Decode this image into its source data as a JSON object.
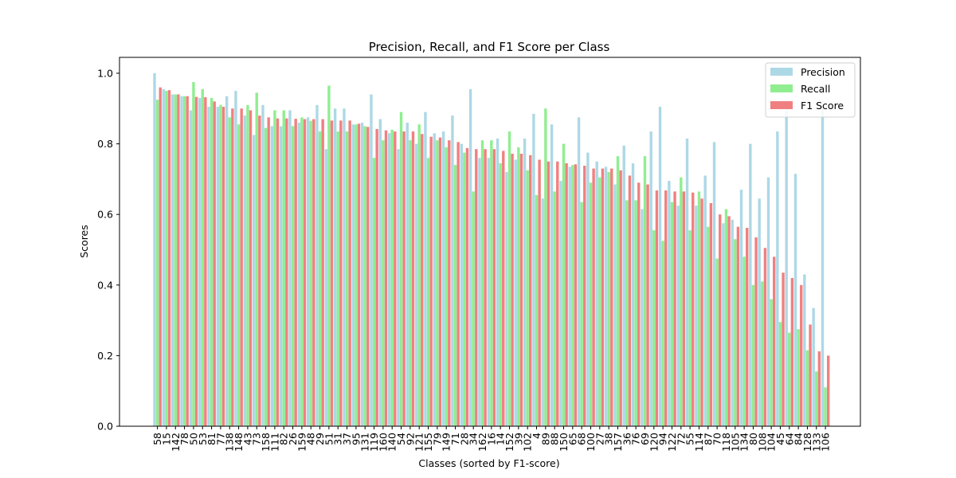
{
  "chart_data": {
    "type": "bar",
    "title": "Precision, Recall, and F1 Score per Class",
    "xlabel": "Classes (sorted by F1-score)",
    "ylabel": "Scores",
    "ylim": [
      0,
      1.045
    ],
    "yticks": [
      "0.0",
      "0.2",
      "0.4",
      "0.6",
      "0.8",
      "1.0"
    ],
    "ytick_values": [
      0,
      0.2,
      0.4,
      0.6,
      0.8,
      1.0
    ],
    "legend_position": "top-right",
    "categories": [
      "58",
      "15",
      "142",
      "78",
      "50",
      "53",
      "81",
      "77",
      "138",
      "148",
      "43",
      "73",
      "158",
      "111",
      "82",
      "26",
      "159",
      "48",
      "29",
      "51",
      "31",
      "37",
      "95",
      "131",
      "119",
      "160",
      "140",
      "54",
      "92",
      "121",
      "155",
      "79",
      "149",
      "71",
      "28",
      "34",
      "162",
      "16",
      "14",
      "152",
      "39",
      "102",
      "4",
      "89",
      "88",
      "150",
      "65",
      "68",
      "100",
      "27",
      "38",
      "157",
      "36",
      "76",
      "69",
      "120",
      "94",
      "122",
      "72",
      "55",
      "114",
      "87",
      "70",
      "118",
      "105",
      "134",
      "80",
      "108",
      "104",
      "45",
      "64",
      "84",
      "128",
      "133",
      "106"
    ],
    "series": [
      {
        "name": "Precision",
        "color": "#add8e6",
        "values": [
          1.0,
          0.955,
          0.94,
          0.935,
          0.895,
          0.93,
          0.905,
          0.905,
          0.935,
          0.95,
          0.88,
          0.825,
          0.91,
          0.85,
          0.85,
          0.895,
          0.86,
          0.875,
          0.91,
          0.785,
          0.9,
          0.9,
          0.855,
          0.86,
          0.94,
          0.87,
          0.83,
          0.785,
          0.86,
          0.8,
          0.89,
          0.83,
          0.835,
          0.88,
          0.8,
          0.955,
          0.76,
          0.76,
          0.815,
          0.72,
          0.755,
          0.815,
          0.885,
          0.645,
          0.855,
          0.695,
          0.735,
          0.875,
          0.775,
          0.75,
          0.735,
          0.685,
          0.795,
          0.745,
          0.615,
          0.835,
          0.905,
          0.695,
          0.625,
          0.815,
          0.625,
          0.71,
          0.805,
          0.575,
          0.585,
          0.67,
          0.8,
          0.645,
          0.705,
          0.835,
          0.895,
          0.715,
          0.43,
          0.335,
          0.9
        ]
      },
      {
        "name": "Recall",
        "color": "#90ee90",
        "values": [
          0.925,
          0.95,
          0.94,
          0.935,
          0.975,
          0.955,
          0.93,
          0.91,
          0.875,
          0.855,
          0.91,
          0.945,
          0.845,
          0.895,
          0.895,
          0.85,
          0.875,
          0.865,
          0.835,
          0.965,
          0.835,
          0.835,
          0.855,
          0.85,
          0.76,
          0.81,
          0.84,
          0.89,
          0.81,
          0.855,
          0.76,
          0.81,
          0.79,
          0.74,
          0.775,
          0.665,
          0.81,
          0.81,
          0.745,
          0.835,
          0.79,
          0.725,
          0.655,
          0.9,
          0.665,
          0.8,
          0.74,
          0.635,
          0.69,
          0.705,
          0.72,
          0.765,
          0.64,
          0.64,
          0.765,
          0.555,
          0.525,
          0.635,
          0.705,
          0.555,
          0.665,
          0.565,
          0.475,
          0.615,
          0.53,
          0.48,
          0.4,
          0.41,
          0.36,
          0.295,
          0.265,
          0.275,
          0.215,
          0.155,
          0.11
        ]
      },
      {
        "name": "F1 Score",
        "color": "#f08080",
        "values": [
          0.96,
          0.952,
          0.94,
          0.935,
          0.933,
          0.932,
          0.92,
          0.905,
          0.9,
          0.9,
          0.895,
          0.88,
          0.875,
          0.872,
          0.872,
          0.871,
          0.87,
          0.87,
          0.87,
          0.866,
          0.866,
          0.866,
          0.857,
          0.848,
          0.842,
          0.838,
          0.835,
          0.835,
          0.835,
          0.828,
          0.82,
          0.818,
          0.81,
          0.805,
          0.788,
          0.785,
          0.785,
          0.785,
          0.78,
          0.772,
          0.772,
          0.768,
          0.755,
          0.75,
          0.75,
          0.745,
          0.742,
          0.738,
          0.73,
          0.73,
          0.73,
          0.725,
          0.71,
          0.69,
          0.685,
          0.668,
          0.668,
          0.665,
          0.665,
          0.662,
          0.645,
          0.632,
          0.6,
          0.595,
          0.565,
          0.562,
          0.535,
          0.505,
          0.48,
          0.435,
          0.42,
          0.4,
          0.288,
          0.212,
          0.2
        ]
      }
    ]
  }
}
